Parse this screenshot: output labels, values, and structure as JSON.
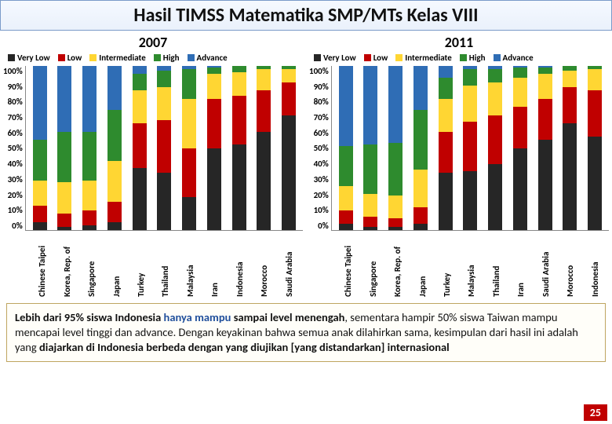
{
  "title": "Hasil TIMSS Matematika SMP/MTs Kelas VIII",
  "page_number": "25",
  "colors": {
    "very_low": "#262626",
    "low": "#c00000",
    "intermediate": "#ffd633",
    "high": "#2e8b2e",
    "advance": "#2f6db5"
  },
  "legend_labels": {
    "very_low": "Very Low",
    "low": "Low",
    "intermediate": "Intermediate",
    "high": "High",
    "advance": "Advance"
  },
  "yticks": [
    "100%",
    "90%",
    "80%",
    "70%",
    "60%",
    "50%",
    "40%",
    "30%",
    "20%",
    "10%",
    "0%"
  ],
  "chart_2007": {
    "title": "2007",
    "categories": [
      "Chinese Taipei",
      "Korea, Rep. of",
      "Singapore",
      "Japan",
      "Turkey",
      "Thailand",
      "Malaysia",
      "Iran",
      "Indonesia",
      "Morocco",
      "Saudi Arabia"
    ],
    "series": [
      {
        "very_low": 5,
        "low": 10,
        "intermediate": 15,
        "high": 25,
        "advance": 45
      },
      {
        "very_low": 2,
        "low": 8,
        "intermediate": 19,
        "high": 31,
        "advance": 40
      },
      {
        "very_low": 3,
        "low": 9,
        "intermediate": 18,
        "high": 30,
        "advance": 40
      },
      {
        "very_low": 5,
        "low": 12,
        "intermediate": 25,
        "high": 31,
        "advance": 27
      },
      {
        "very_low": 38,
        "low": 27,
        "intermediate": 20,
        "high": 10,
        "advance": 5
      },
      {
        "very_low": 35,
        "low": 32,
        "intermediate": 20,
        "high": 10,
        "advance": 3
      },
      {
        "very_low": 20,
        "low": 30,
        "intermediate": 30,
        "high": 18,
        "advance": 2
      },
      {
        "very_low": 50,
        "low": 30,
        "intermediate": 15,
        "high": 4,
        "advance": 1
      },
      {
        "very_low": 52,
        "low": 30,
        "intermediate": 14,
        "high": 4,
        "advance": 0
      },
      {
        "very_low": 60,
        "low": 25,
        "intermediate": 13,
        "high": 2,
        "advance": 0
      },
      {
        "very_low": 70,
        "low": 20,
        "intermediate": 8,
        "high": 2,
        "advance": 0
      }
    ]
  },
  "chart_2011": {
    "title": "2011",
    "categories": [
      "Chinese Taipei",
      "Singapore",
      "Korea, Rep. of",
      "Japan",
      "Turkey",
      "Malaysia",
      "Thailand",
      "Iran",
      "Saudi Arabia",
      "Morocco",
      "Indonesia"
    ],
    "series": [
      {
        "very_low": 4,
        "low": 8,
        "intermediate": 15,
        "high": 24,
        "advance": 49
      },
      {
        "very_low": 2,
        "low": 6,
        "intermediate": 14,
        "high": 30,
        "advance": 48
      },
      {
        "very_low": 2,
        "low": 5,
        "intermediate": 14,
        "high": 32,
        "advance": 47
      },
      {
        "very_low": 4,
        "low": 10,
        "intermediate": 23,
        "high": 36,
        "advance": 27
      },
      {
        "very_low": 35,
        "low": 25,
        "intermediate": 20,
        "high": 13,
        "advance": 7
      },
      {
        "very_low": 36,
        "low": 30,
        "intermediate": 22,
        "high": 10,
        "advance": 2
      },
      {
        "very_low": 40,
        "low": 30,
        "intermediate": 20,
        "high": 8,
        "advance": 2
      },
      {
        "very_low": 50,
        "low": 25,
        "intermediate": 18,
        "high": 6,
        "advance": 1
      },
      {
        "very_low": 55,
        "low": 25,
        "intermediate": 15,
        "high": 4,
        "advance": 1
      },
      {
        "very_low": 65,
        "low": 22,
        "intermediate": 10,
        "high": 3,
        "advance": 0
      },
      {
        "very_low": 57,
        "low": 28,
        "intermediate": 13,
        "high": 2,
        "advance": 0
      }
    ]
  },
  "caption": {
    "part1": "Lebih dari 95% siswa Indonesia ",
    "part2_blue": "hanya mampu ",
    "part3_bold": "sampai level menengah",
    "part4": ", sementara hampir 50% siswa Taiwan mampu mencapai level tinggi dan advance. Dengan keyakinan bahwa semua anak dilahirkan sama, kesimpulan dari hasil ini adalah yang ",
    "part5_bold": "diajarkan di Indonesia berbeda dengan yang diujikan [yang distandarkan] internasional"
  }
}
